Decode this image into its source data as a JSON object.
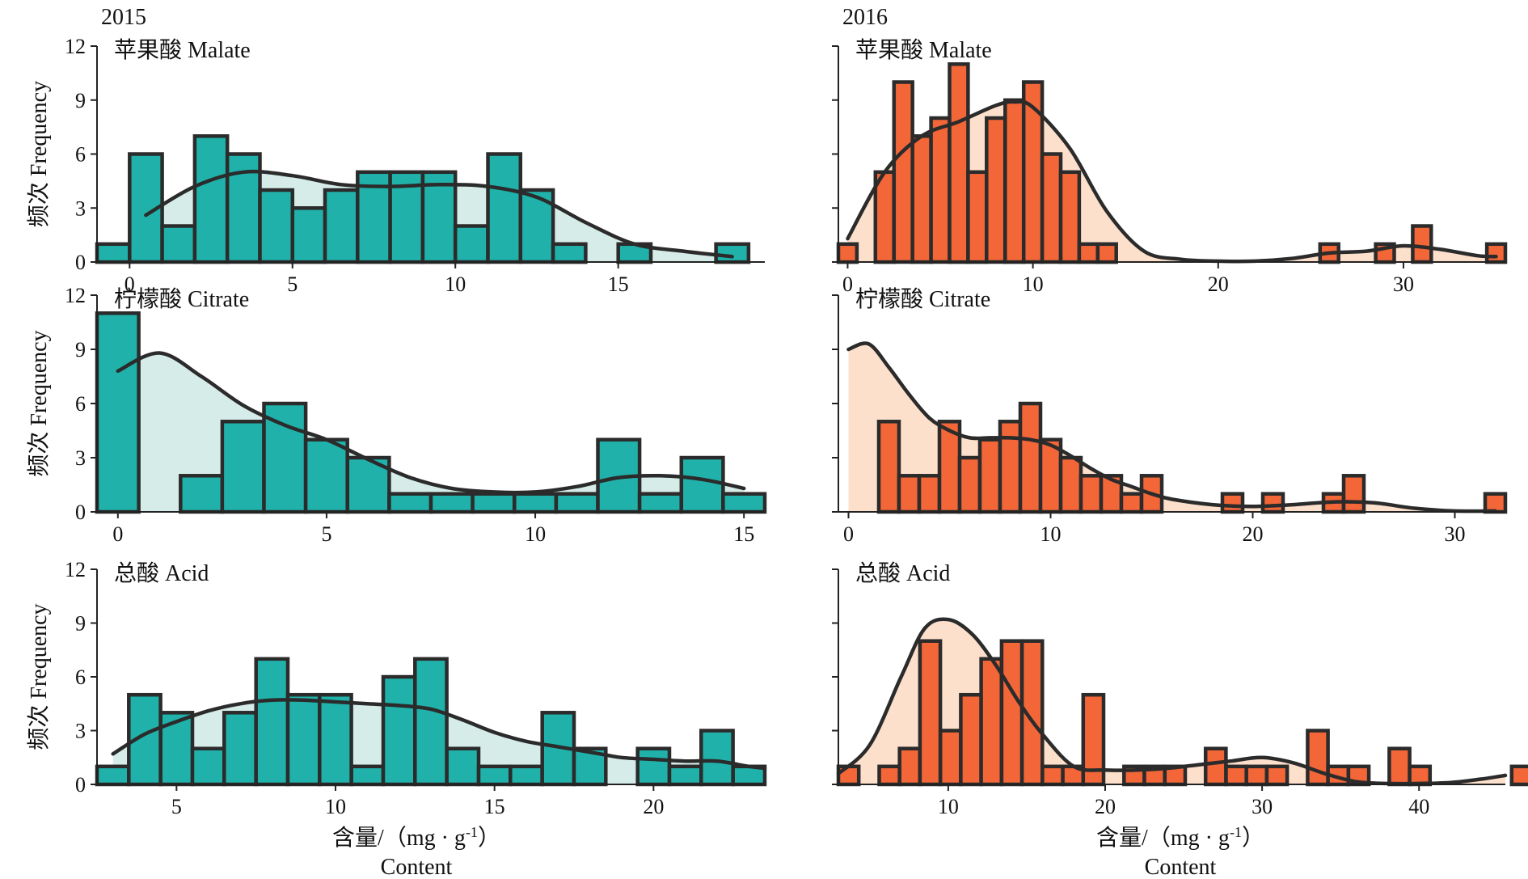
{
  "figure": {
    "xlabel_cn": "含量/（mg · g",
    "xlabel_sup": "-1",
    "xlabel_close": "）",
    "xlabel_en": "Content",
    "ylabel": "频次 Frequency",
    "colors": {
      "2015": {
        "bar": "#20b2aa",
        "kde_fill": "#d6ece9"
      },
      "2016": {
        "bar": "#f26638",
        "kde_fill": "#fde0cc"
      }
    }
  },
  "chart_data": [
    {
      "id": "p2015-malate",
      "type": "bar",
      "year": "2015",
      "year_label": "2015",
      "title": "苹果酸 Malate",
      "xlim": [
        -1.0,
        19.5
      ],
      "ylim": [
        0,
        12
      ],
      "xticks": [
        0,
        5,
        10,
        15
      ],
      "yticks": [
        0,
        3,
        6,
        9,
        12
      ],
      "bin_start": -1.0,
      "bin_width": 1.0,
      "counts": [
        1,
        6,
        2,
        7,
        6,
        4,
        3,
        4,
        5,
        5,
        5,
        2,
        6,
        4,
        1,
        0,
        1,
        0,
        0,
        1
      ],
      "kde": {
        "x": [
          0.5,
          2,
          3.5,
          5,
          6.5,
          8,
          9.5,
          11,
          12.5,
          14,
          15.5,
          17,
          18.5
        ],
        "y": [
          2.6,
          4.2,
          5.0,
          4.8,
          4.3,
          4.2,
          4.3,
          4.2,
          3.6,
          2.2,
          1.0,
          0.6,
          0.3
        ]
      }
    },
    {
      "id": "p2016-malate",
      "type": "bar",
      "year": "2016",
      "year_label": "2016",
      "title": "苹果酸 Malate",
      "xlim": [
        -0.5,
        35.5
      ],
      "ylim": [
        0,
        12
      ],
      "xticks": [
        0,
        10,
        20,
        30
      ],
      "yticks": [
        0,
        3,
        6,
        9,
        12
      ],
      "bin_start": -0.5,
      "bin_width": 1.0,
      "counts": [
        1,
        0,
        5,
        10,
        7,
        8,
        11,
        5,
        8,
        9,
        10,
        6,
        5,
        1,
        1,
        0,
        0,
        0,
        0,
        0,
        0,
        0,
        0,
        0,
        0,
        0,
        1,
        0,
        0,
        1,
        0,
        2,
        0,
        0,
        0,
        1
      ],
      "kde": {
        "x": [
          0,
          2,
          4,
          6,
          8,
          9,
          10,
          12,
          14,
          16,
          18,
          20,
          22,
          24,
          26,
          28,
          30,
          32,
          34,
          35
        ],
        "y": [
          1.3,
          5.0,
          7.0,
          7.8,
          8.7,
          8.9,
          8.6,
          6.3,
          2.8,
          0.6,
          0.15,
          0.05,
          0.05,
          0.2,
          0.5,
          0.6,
          0.9,
          0.7,
          0.35,
          0.3
        ]
      }
    },
    {
      "id": "p2015-citrate",
      "type": "bar",
      "year": "2015",
      "title": "柠檬酸 Citrate",
      "xlim": [
        -0.5,
        15.5
      ],
      "ylim": [
        0,
        12
      ],
      "xticks": [
        0,
        5,
        10,
        15
      ],
      "yticks": [
        0,
        3,
        6,
        9,
        12
      ],
      "bin_start": -0.5,
      "bin_width": 1.0,
      "counts": [
        11,
        0,
        2,
        5,
        6,
        4,
        3,
        1,
        1,
        1,
        1,
        1,
        4,
        1,
        3,
        1
      ],
      "kde": {
        "x": [
          0,
          1,
          2,
          3,
          4,
          5,
          6,
          7,
          8,
          9,
          10,
          11,
          12,
          13,
          14,
          15
        ],
        "y": [
          7.8,
          8.8,
          7.5,
          5.9,
          4.8,
          4.0,
          2.9,
          1.9,
          1.3,
          1.1,
          1.1,
          1.4,
          1.9,
          2.0,
          1.8,
          1.3
        ]
      }
    },
    {
      "id": "p2016-citrate",
      "type": "bar",
      "year": "2016",
      "title": "柠檬酸 Citrate",
      "xlim": [
        -0.5,
        32.5
      ],
      "ylim": [
        0,
        12
      ],
      "xticks": [
        0,
        10,
        20,
        30
      ],
      "yticks": [
        0,
        3,
        6,
        9,
        12
      ],
      "bin_start": -0.5,
      "bin_width": 1.0,
      "counts": [
        0,
        0,
        5,
        2,
        2,
        5,
        3,
        4,
        5,
        6,
        4,
        3,
        2,
        2,
        1,
        2,
        0,
        0,
        0,
        1,
        0,
        1,
        0,
        0,
        1,
        2,
        0,
        0,
        0,
        0,
        0,
        0,
        1
      ],
      "kde": {
        "x": [
          0,
          1,
          2,
          3,
          4,
          5,
          6,
          7,
          8,
          9,
          10,
          11,
          12,
          13,
          14,
          15,
          16,
          18,
          20,
          22,
          24,
          26,
          28,
          30,
          32
        ],
        "y": [
          9.0,
          9.3,
          8.0,
          6.5,
          5.2,
          4.5,
          4.1,
          4.1,
          4.1,
          4.0,
          3.7,
          3.1,
          2.4,
          1.8,
          1.4,
          1.0,
          0.7,
          0.4,
          0.3,
          0.4,
          0.55,
          0.5,
          0.2,
          0.05,
          0.05
        ]
      }
    },
    {
      "id": "p2015-acid",
      "type": "bar",
      "year": "2015",
      "title": "总酸 Acid",
      "xlim": [
        2.5,
        23.5
      ],
      "ylim": [
        0,
        12
      ],
      "xticks": [
        5,
        10,
        15,
        20
      ],
      "yticks": [
        0,
        3,
        6,
        9,
        12
      ],
      "bin_start": 2.5,
      "bin_width": 1.0,
      "counts": [
        1,
        5,
        4,
        2,
        4,
        7,
        5,
        5,
        1,
        6,
        7,
        2,
        1,
        1,
        4,
        2,
        0,
        2,
        1,
        3,
        1
      ],
      "kde": {
        "x": [
          3,
          4,
          5,
          6,
          7,
          8,
          9,
          10,
          11,
          12,
          13,
          14,
          15,
          16,
          17,
          18,
          19,
          20,
          21,
          22,
          23,
          23.5
        ],
        "y": [
          1.7,
          2.8,
          3.5,
          4.1,
          4.5,
          4.7,
          4.7,
          4.6,
          4.5,
          4.4,
          4.2,
          3.6,
          2.9,
          2.4,
          2.1,
          1.8,
          1.5,
          1.4,
          1.3,
          1.3,
          1.0,
          0.9
        ]
      }
    },
    {
      "id": "p2016-acid",
      "type": "bar",
      "year": "2016",
      "title": "总酸 Acid",
      "xlim": [
        3.0,
        45.5
      ],
      "ylim": [
        0,
        12
      ],
      "xticks": [
        10,
        20,
        30,
        40
      ],
      "yticks": [
        0,
        3,
        6,
        9,
        12
      ],
      "bin_start": 3.0,
      "bin_width": 1.3,
      "counts": [
        1,
        0,
        1,
        2,
        8,
        3,
        5,
        7,
        8,
        8,
        1,
        1,
        5,
        0,
        1,
        1,
        1,
        0,
        2,
        1,
        1,
        1,
        0,
        3,
        1,
        1,
        0,
        2,
        1,
        0,
        0,
        0,
        0,
        1
      ],
      "kde": {
        "x": [
          3,
          5,
          7,
          8.5,
          10,
          11.5,
          13,
          14.5,
          16,
          18,
          20,
          22,
          24,
          26,
          28,
          30,
          32,
          34,
          36,
          38,
          40,
          42,
          44,
          45.5
        ],
        "y": [
          0.6,
          2.2,
          6.0,
          8.7,
          9.2,
          8.4,
          6.7,
          4.6,
          2.8,
          1.0,
          0.8,
          0.8,
          0.9,
          1.1,
          1.3,
          1.5,
          1.2,
          0.6,
          0.15,
          0.05,
          0.05,
          0.1,
          0.3,
          0.5
        ]
      }
    }
  ]
}
